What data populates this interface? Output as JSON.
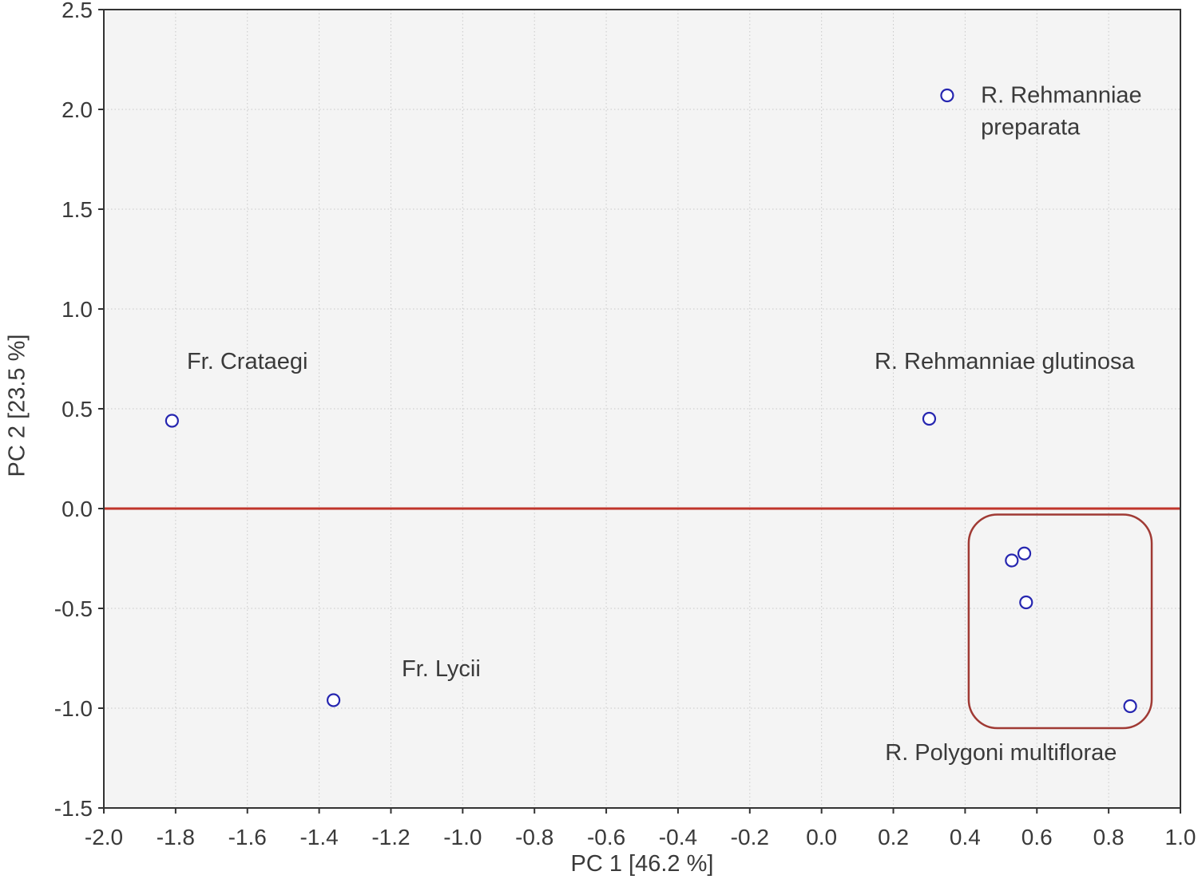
{
  "chart_data": {
    "type": "scatter",
    "title": "",
    "xlabel": "PC 1 [46.2 %]",
    "ylabel": "PC 2 [23.5 %]",
    "xlim": [
      -2.0,
      1.0
    ],
    "ylim": [
      -1.5,
      2.5
    ],
    "x_ticks": [
      -2.0,
      -1.8,
      -1.6,
      -1.4,
      -1.2,
      -1.0,
      -0.8,
      -0.6,
      -0.4,
      -0.2,
      0.0,
      0.2,
      0.4,
      0.6,
      0.8,
      1.0
    ],
    "y_ticks": [
      -1.5,
      -1.0,
      -0.5,
      0.0,
      0.5,
      1.0,
      1.5,
      2.0,
      2.5
    ],
    "grid": true,
    "legend_position": "none",
    "zero_line_y": 0.0,
    "series": [
      {
        "name": "herbal-samples",
        "marker": "open-circle",
        "points": [
          {
            "x": -1.81,
            "y": 0.44,
            "sample": "Fr. Crataegi"
          },
          {
            "x": -1.36,
            "y": -0.96,
            "sample": "Fr. Lycii"
          },
          {
            "x": 0.35,
            "y": 2.07,
            "sample": "R. Rehmanniae preparata"
          },
          {
            "x": 0.3,
            "y": 0.45,
            "sample": "R. Rehmanniae glutinosa"
          },
          {
            "x": 0.53,
            "y": -0.26,
            "sample": "R. Polygoni multiflorae"
          },
          {
            "x": 0.565,
            "y": -0.225,
            "sample": "R. Polygoni multiflorae"
          },
          {
            "x": 0.57,
            "y": -0.47,
            "sample": "R. Polygoni multiflorae"
          },
          {
            "x": 0.86,
            "y": -0.99,
            "sample": "R. Polygoni multiflorae"
          }
        ]
      }
    ],
    "annotations": [
      {
        "text": "Fr. Crataegi",
        "x": -1.6,
        "y": 0.74,
        "anchor": "middle"
      },
      {
        "text": "Fr. Lycii",
        "x": -1.06,
        "y": -0.8,
        "anchor": "middle"
      },
      {
        "text": "R. Rehmanniae\npreparata",
        "x": 0.444,
        "y": 2.075,
        "anchor": "start"
      },
      {
        "text": "R. Rehmanniae glutinosa",
        "x": 0.51,
        "y": 0.74,
        "anchor": "middle"
      },
      {
        "text": "R. Polygoni multiflorae",
        "x": 0.5,
        "y": -1.22,
        "anchor": "middle"
      }
    ],
    "cluster_box": {
      "x0": 0.41,
      "y0": -1.1,
      "x1": 0.92,
      "y1": -0.03
    },
    "colors": {
      "point": "#2626b0",
      "zero_line": "#c0352b",
      "cluster_box": "#a03a34",
      "grid": "#c9c9c9",
      "plot_bg": "#f4f4f4",
      "frame": "#333333",
      "text": "#3a3a3a"
    }
  }
}
